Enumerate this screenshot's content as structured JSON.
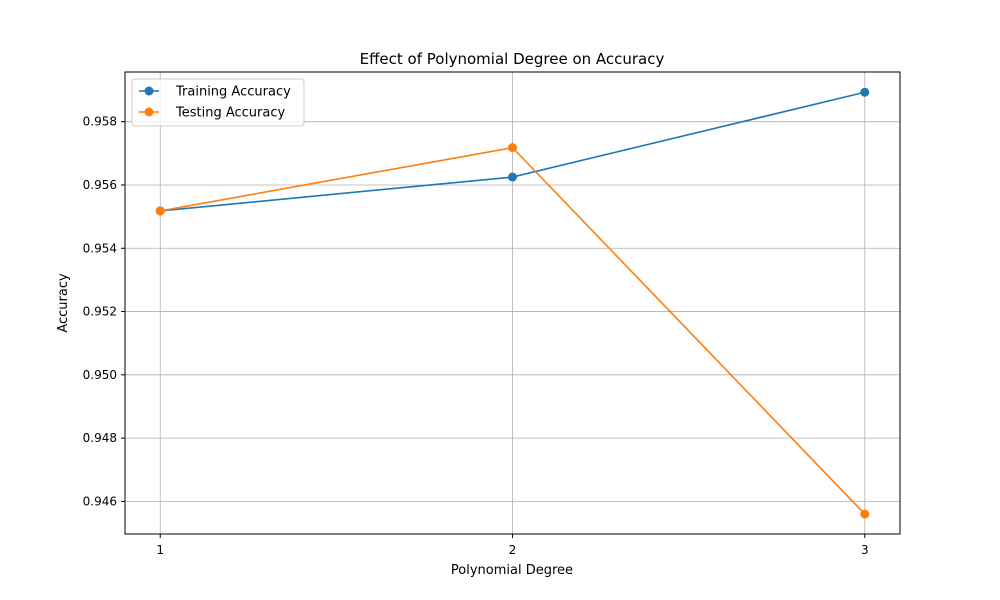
{
  "chart_data": {
    "type": "line",
    "title": "Effect of Polynomial Degree on Accuracy",
    "xlabel": "Polynomial Degree",
    "ylabel": "Accuracy",
    "x": [
      1,
      2,
      3
    ],
    "xticks": [
      "1",
      "2",
      "3"
    ],
    "xlim": [
      0.9,
      3.1
    ],
    "ylim": [
      0.94497,
      0.95957
    ],
    "yticks": [
      "0.946",
      "0.948",
      "0.950",
      "0.952",
      "0.954",
      "0.956",
      "0.958"
    ],
    "grid": true,
    "legend_position": "top-left",
    "series": [
      {
        "name": "Training Accuracy",
        "color": "#1f77b4",
        "marker": "circle",
        "values": [
          0.95518,
          0.95625,
          0.95893
        ]
      },
      {
        "name": "Testing Accuracy",
        "color": "#ff7f0e",
        "marker": "circle",
        "values": [
          0.95518,
          0.95718,
          0.9456
        ]
      }
    ]
  }
}
